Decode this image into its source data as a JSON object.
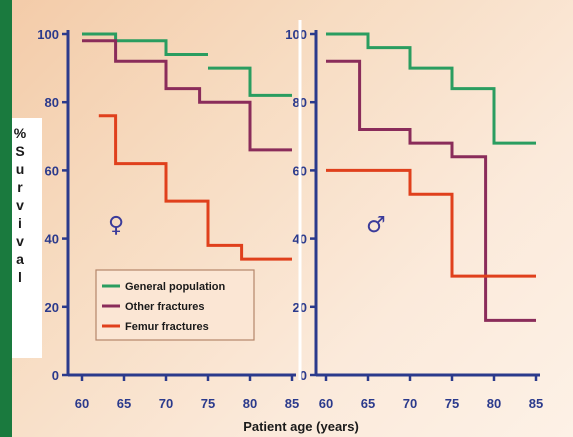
{
  "chart_data": {
    "type": "line",
    "step": true,
    "ylabel": "% Survival",
    "xlabel": "Patient age (years)",
    "ylim": [
      0,
      100
    ],
    "yticks": [
      0,
      20,
      40,
      60,
      80,
      100
    ],
    "xticks": [
      60,
      65,
      70,
      75,
      80,
      85
    ],
    "legend_position": "lower-left of left panel",
    "colors": {
      "General population": "#2a9d60",
      "Other fractures": "#8a2c5a",
      "Femur fractures": "#e0401c",
      "axis": "#2b3a8c"
    },
    "panels": [
      {
        "symbol": "♀",
        "xlim": [
          60,
          85
        ],
        "series": [
          {
            "name": "General population",
            "points": [
              [
                60,
                100
              ],
              [
                64,
                100
              ],
              [
                64,
                98
              ],
              [
                70,
                98
              ],
              [
                70,
                94
              ],
              [
                75,
                94
              ]
            ]
          },
          {
            "name": "General population",
            "points": [
              [
                75,
                90
              ],
              [
                80,
                90
              ],
              [
                80,
                82
              ],
              [
                85,
                82
              ]
            ]
          },
          {
            "name": "Other fractures",
            "points": [
              [
                60,
                98
              ],
              [
                64,
                98
              ],
              [
                64,
                92
              ],
              [
                70,
                92
              ],
              [
                70,
                84
              ],
              [
                74,
                84
              ],
              [
                74,
                80
              ],
              [
                80,
                80
              ],
              [
                80,
                66
              ],
              [
                85,
                66
              ]
            ]
          },
          {
            "name": "Femur fractures",
            "points": [
              [
                62,
                76
              ],
              [
                64,
                76
              ],
              [
                64,
                62
              ],
              [
                70,
                62
              ],
              [
                70,
                51
              ],
              [
                75,
                51
              ],
              [
                75,
                38
              ],
              [
                79,
                38
              ],
              [
                79,
                34
              ],
              [
                85,
                34
              ]
            ]
          }
        ]
      },
      {
        "symbol": "♂",
        "xlim": [
          60,
          85
        ],
        "series": [
          {
            "name": "General population",
            "points": [
              [
                60,
                100
              ],
              [
                65,
                100
              ],
              [
                65,
                96
              ],
              [
                70,
                96
              ],
              [
                70,
                90
              ],
              [
                75,
                90
              ],
              [
                75,
                84
              ],
              [
                80,
                84
              ],
              [
                80,
                68
              ],
              [
                85,
                68
              ]
            ]
          },
          {
            "name": "Other fractures",
            "points": [
              [
                60,
                92
              ],
              [
                64,
                92
              ],
              [
                64,
                72
              ],
              [
                70,
                72
              ],
              [
                70,
                68
              ],
              [
                75,
                68
              ],
              [
                75,
                64
              ],
              [
                79,
                64
              ],
              [
                79,
                16
              ],
              [
                85,
                16
              ]
            ]
          },
          {
            "name": "Femur fractures",
            "points": [
              [
                60,
                60
              ],
              [
                70,
                60
              ],
              [
                70,
                53
              ],
              [
                75,
                53
              ],
              [
                75,
                29
              ],
              [
                85,
                29
              ]
            ]
          }
        ]
      }
    ]
  },
  "legend": [
    {
      "label": "General population",
      "color": "#2a9d60"
    },
    {
      "label": "Other fractures",
      "color": "#8a2c5a"
    },
    {
      "label": "Femur fractures",
      "color": "#e0401c"
    }
  ]
}
